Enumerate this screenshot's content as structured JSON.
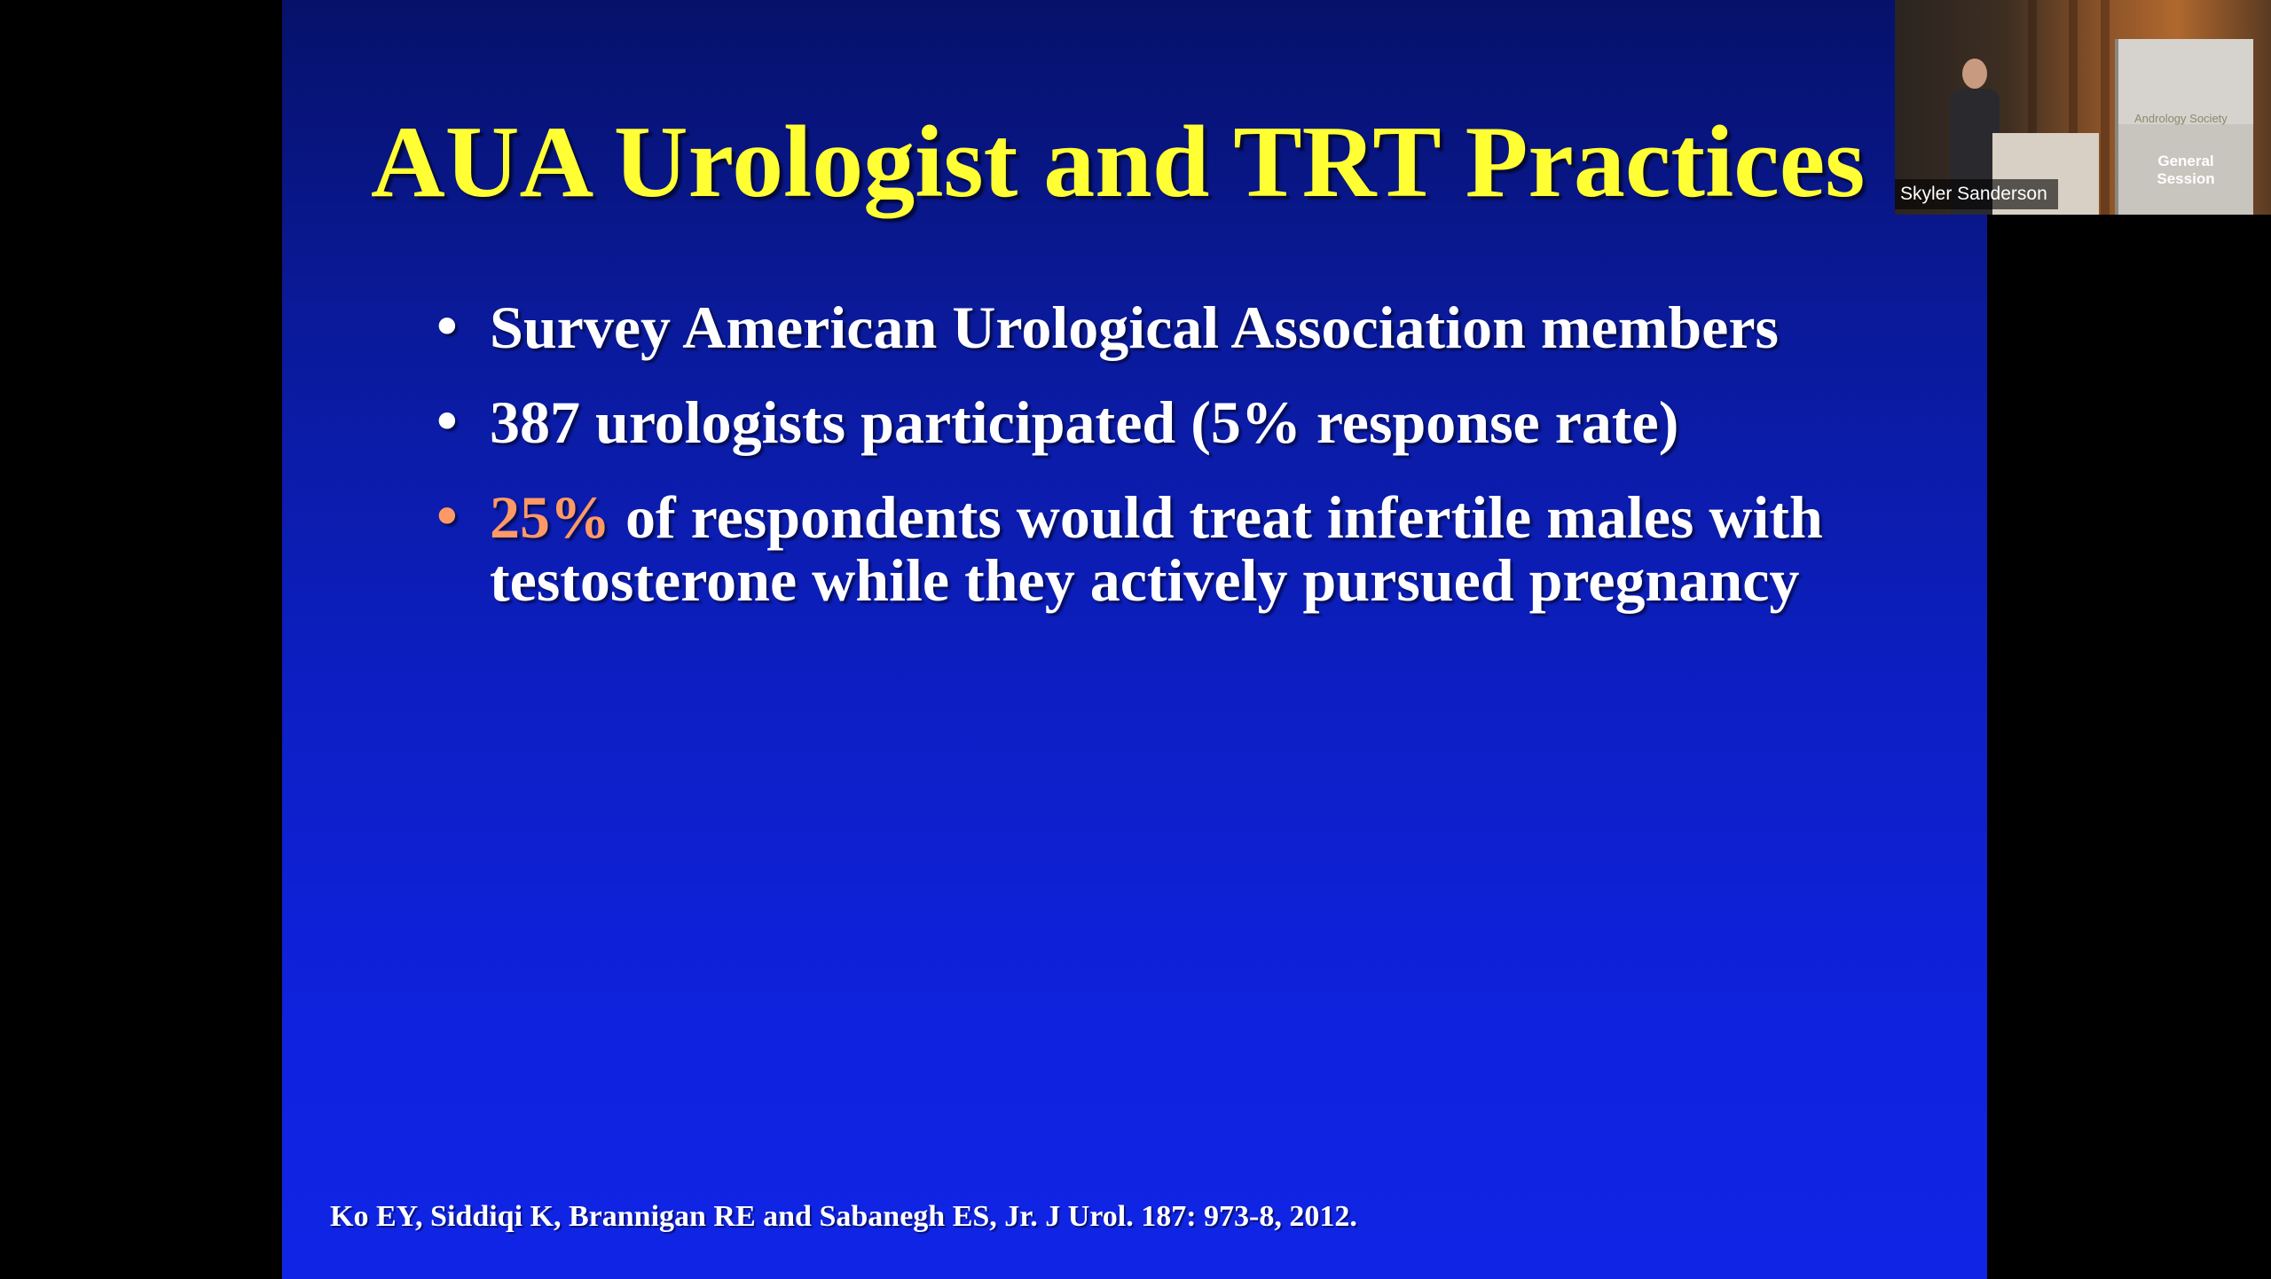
{
  "slide": {
    "title": "AUA Urologist and TRT Practices",
    "bullets": [
      {
        "text": "Survey American Urological Association members"
      },
      {
        "text": "387 urologists participated (5% response rate)"
      },
      {
        "highlight": "25%",
        "text": " of respondents would treat infertile males with testosterone while they actively pursued pregnancy"
      }
    ],
    "bullet_glyph": "•",
    "citation": "Ko EY, Siddiqi K, Brannigan RE and Sabanegh ES, Jr. J Urol. 187: 973-8, 2012."
  },
  "speaker_video": {
    "participant_name": "Skyler Sanderson",
    "banner_logo_text": "Andrology Society",
    "banner_label_line1": "General",
    "banner_label_line2": "Session"
  },
  "colors": {
    "title": "#ffff33",
    "body_text": "#ffffff",
    "accent": "#ff9966",
    "slide_background_top": "#06116a",
    "slide_background_bottom": "#1024e6",
    "letterbox": "#000000"
  }
}
